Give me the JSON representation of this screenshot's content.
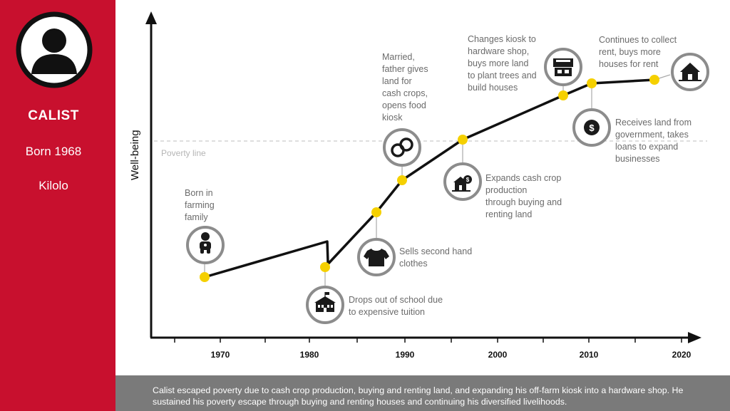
{
  "person": {
    "name": "CALIST",
    "born": "Born 1968",
    "location": "Kilolo"
  },
  "chart": {
    "ylabel": "Well-being",
    "poverty_line_label": "Poverty line",
    "x_ticks": [
      "1970",
      "1980",
      "1990",
      "2000",
      "2010",
      "2020"
    ],
    "events": [
      {
        "id": "born",
        "year": 1968,
        "lines": [
          "Born in",
          "farming",
          "family"
        ],
        "icon": "baby-icon"
      },
      {
        "id": "dropout",
        "year": 1982,
        "lines": [
          "Drops out of school due",
          "to expensive tuition"
        ],
        "icon": "school-icon"
      },
      {
        "id": "clothes",
        "year": 1987,
        "lines": [
          "Sells second hand",
          "clothes"
        ],
        "icon": "shirt-icon"
      },
      {
        "id": "married",
        "year": 1990,
        "lines": [
          "Married,",
          "father gives",
          "land for",
          "cash crops,",
          "opens food",
          "kiosk"
        ],
        "icon": "rings-icon"
      },
      {
        "id": "expands",
        "year": 1996,
        "lines": [
          "Expands cash crop",
          "production",
          "through buying and",
          "renting land"
        ],
        "icon": "farm-money-icon"
      },
      {
        "id": "hardware",
        "year": 2007,
        "lines": [
          "Changes kiosk to",
          "hardware shop,",
          "buys more land",
          "to plant trees and",
          "build houses"
        ],
        "icon": "shop-icon"
      },
      {
        "id": "loans",
        "year": 2010,
        "lines": [
          "Receives land from",
          "government, takes",
          "loans to expand",
          "businesses"
        ],
        "icon": "dollar-icon"
      },
      {
        "id": "rent",
        "year": 2017,
        "lines": [
          "Continues to collect",
          "rent, buys more",
          "houses for rent"
        ],
        "icon": "house-icon"
      }
    ]
  },
  "footer": {
    "text": "Calist escaped poverty due to cash crop production, buying and renting land, and expanding his off-farm kiosk into a hardware shop. He sustained his poverty escape through buying and renting houses and continuing his diversified livelihoods."
  },
  "colors": {
    "sidebar": "#c8102e",
    "marker": "#f5d000",
    "footer": "#7a7a7a",
    "line": "#111111"
  }
}
